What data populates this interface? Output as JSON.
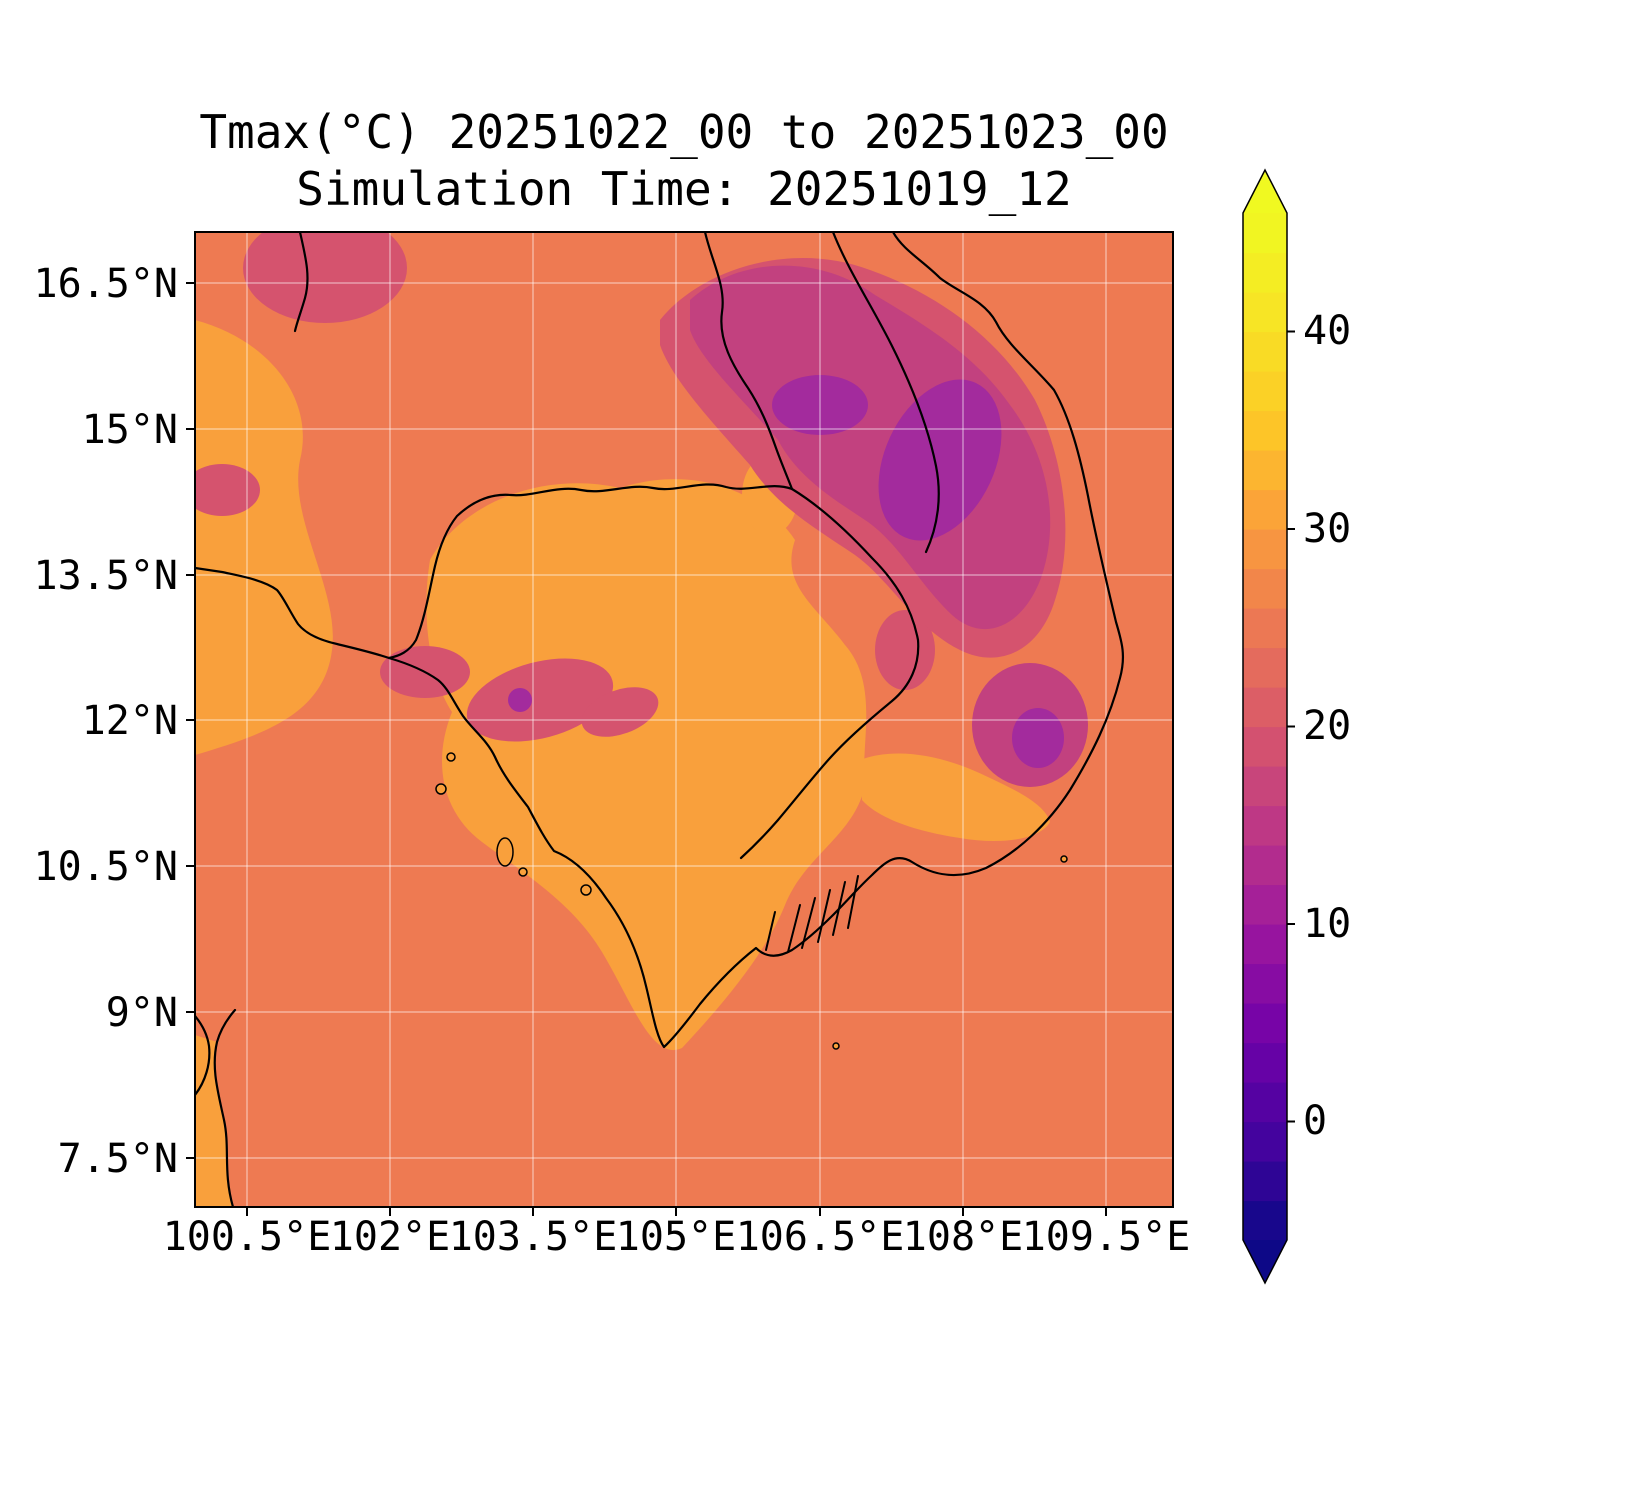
{
  "chart_data": {
    "type": "heatmap",
    "title": "Tmax(°C) 20251022_00 to 20251023_00",
    "subtitle": "Simulation Time: 20251019_12",
    "variable": "Tmax",
    "units": "°C",
    "period_start": "20251022_00",
    "period_end": "20251023_00",
    "simulation_time": "20251019_12",
    "x_axis": {
      "tick_labels": [
        "100.5°E",
        "102°E",
        "103.5°E",
        "105°E",
        "106.5°E",
        "108°E",
        "109.5°E"
      ],
      "tick_values": [
        100.5,
        102,
        103.5,
        105,
        106.5,
        108,
        109.5
      ],
      "range_estimate_deg_e": [
        100.0,
        110.2
      ]
    },
    "y_axis": {
      "tick_labels": [
        "16.5°N",
        "15°N",
        "13.5°N",
        "12°N",
        "10.5°N",
        "9°N",
        "7.5°N"
      ],
      "tick_values": [
        16.5,
        15,
        13.5,
        12,
        10.5,
        9,
        7.5
      ],
      "range_estimate_deg_n": [
        7.0,
        17.0
      ]
    },
    "colorbar": {
      "tick_labels": [
        "40",
        "30",
        "20",
        "10",
        "0"
      ],
      "tick_values": [
        40,
        30,
        20,
        10,
        0
      ],
      "vmin": -6,
      "vmax": 46,
      "level_step": 2,
      "extend": "both",
      "colormap_name": "plasma",
      "colormap_anchors": [
        "#0d0887",
        "#46039f",
        "#7201a8",
        "#9c179e",
        "#bd3786",
        "#d8576b",
        "#ed7953",
        "#fb9f3a",
        "#fdca26",
        "#f7e425",
        "#f0f921"
      ]
    },
    "grid": true,
    "legend_position": "right-colorbar",
    "regions": [
      {
        "name": "sea-and-plains-background",
        "approx_tmax_c": 29
      },
      {
        "name": "cambodia-mekong-lowlands",
        "approx_tmax_c": 32
      },
      {
        "name": "west-coast-lowlands",
        "approx_tmax_c": 32
      },
      {
        "name": "annamite-highlands-northeast",
        "approx_tmax_c": 20
      },
      {
        "name": "highland-cold-cores",
        "approx_tmax_c": 15
      },
      {
        "name": "scattered-hill-patches",
        "approx_tmax_c": 24
      }
    ]
  },
  "map": {
    "colors": {
      "base": "#ee7a52",
      "lowland": "#f9a03c",
      "magenta": "#d5536e",
      "purple": "#c2417f",
      "purple_dark": "#a32b9d",
      "border": "#000000",
      "grid": "rgba(255,255,255,0.45)"
    }
  }
}
